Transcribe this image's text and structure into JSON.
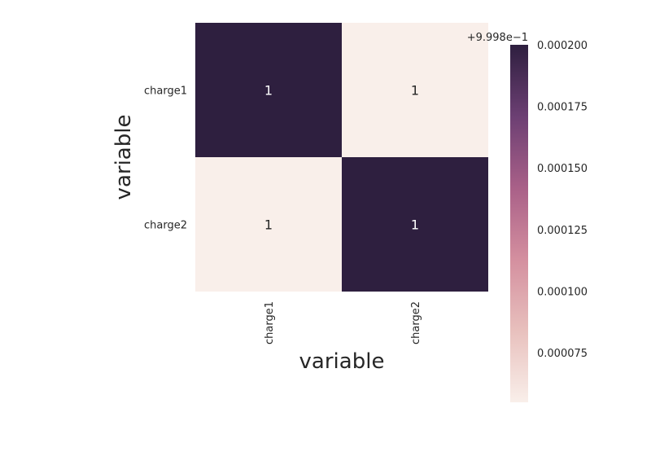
{
  "chart_data": {
    "type": "heatmap",
    "title": "",
    "xlabel": "variable",
    "ylabel": "variable",
    "x_categories": [
      "charge1",
      "charge2"
    ],
    "y_categories": [
      "charge1",
      "charge2"
    ],
    "cell_labels": [
      [
        "1",
        "1"
      ],
      [
        "1",
        "1"
      ]
    ],
    "values": [
      [
        1.0,
        0.999855
      ],
      [
        0.999855,
        1.0
      ]
    ],
    "colorbar": {
      "offset_label": "+9.998e−1",
      "range": [
        5.48e-05,
        0.0002
      ],
      "ticks": [
        {
          "value": 7.5e-05,
          "label": "0.000075"
        },
        {
          "value": 0.0001,
          "label": "0.000100"
        },
        {
          "value": 0.000125,
          "label": "0.000125"
        },
        {
          "value": 0.00015,
          "label": "0.000150"
        },
        {
          "value": 0.000175,
          "label": "0.000175"
        },
        {
          "value": 0.0002,
          "label": "0.000200"
        }
      ],
      "colormap": [
        "#f9efea",
        "#e8c0bd",
        "#d48f9f",
        "#a96088",
        "#6c3f73",
        "#2e1f3f"
      ]
    },
    "grid": false,
    "legend": "colorbar-right"
  }
}
